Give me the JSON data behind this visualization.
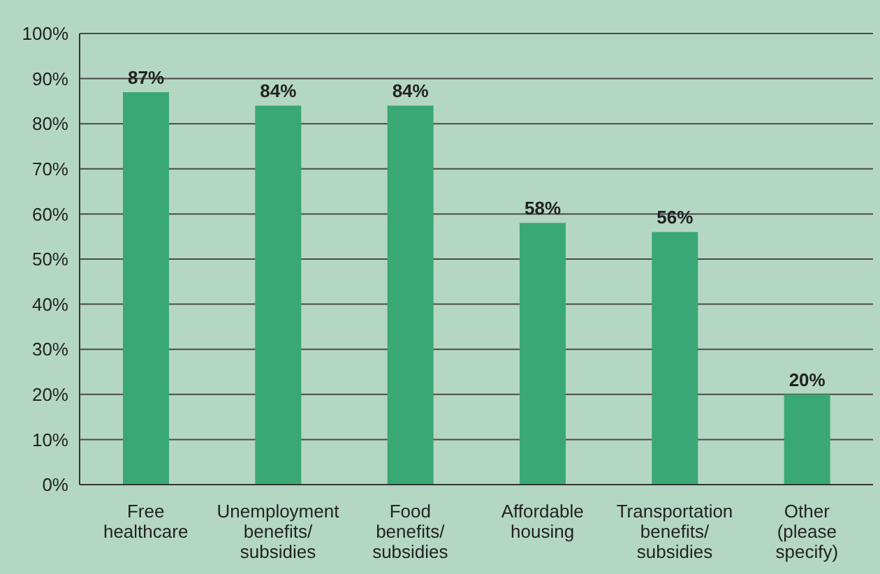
{
  "chart_data": {
    "type": "bar",
    "categories": [
      "Free healthcare",
      "Unemployment benefits/ subsidies",
      "Food benefits/ subsidies",
      "Affordable housing",
      "Transportation benefits/ subsidies",
      "Other (please specify)"
    ],
    "values": [
      87,
      84,
      84,
      58,
      56,
      20
    ],
    "value_labels": [
      "87%",
      "84%",
      "84%",
      "58%",
      "56%",
      "20%"
    ],
    "color": "#3aa874",
    "ylim": [
      0,
      100
    ],
    "yticks": [
      {
        "value": 0,
        "label": "0%"
      },
      {
        "value": 10,
        "label": "10%"
      },
      {
        "value": 20,
        "label": "20%"
      },
      {
        "value": 30,
        "label": "30%"
      },
      {
        "value": 40,
        "label": "40%"
      },
      {
        "value": 50,
        "label": "50%"
      },
      {
        "value": 60,
        "label": "60%"
      },
      {
        "value": 70,
        "label": "70%"
      },
      {
        "value": 80,
        "label": "80%"
      },
      {
        "value": 90,
        "label": "90%"
      },
      {
        "value": 100,
        "label": "100%"
      }
    ],
    "grid": "y",
    "legend": false
  }
}
